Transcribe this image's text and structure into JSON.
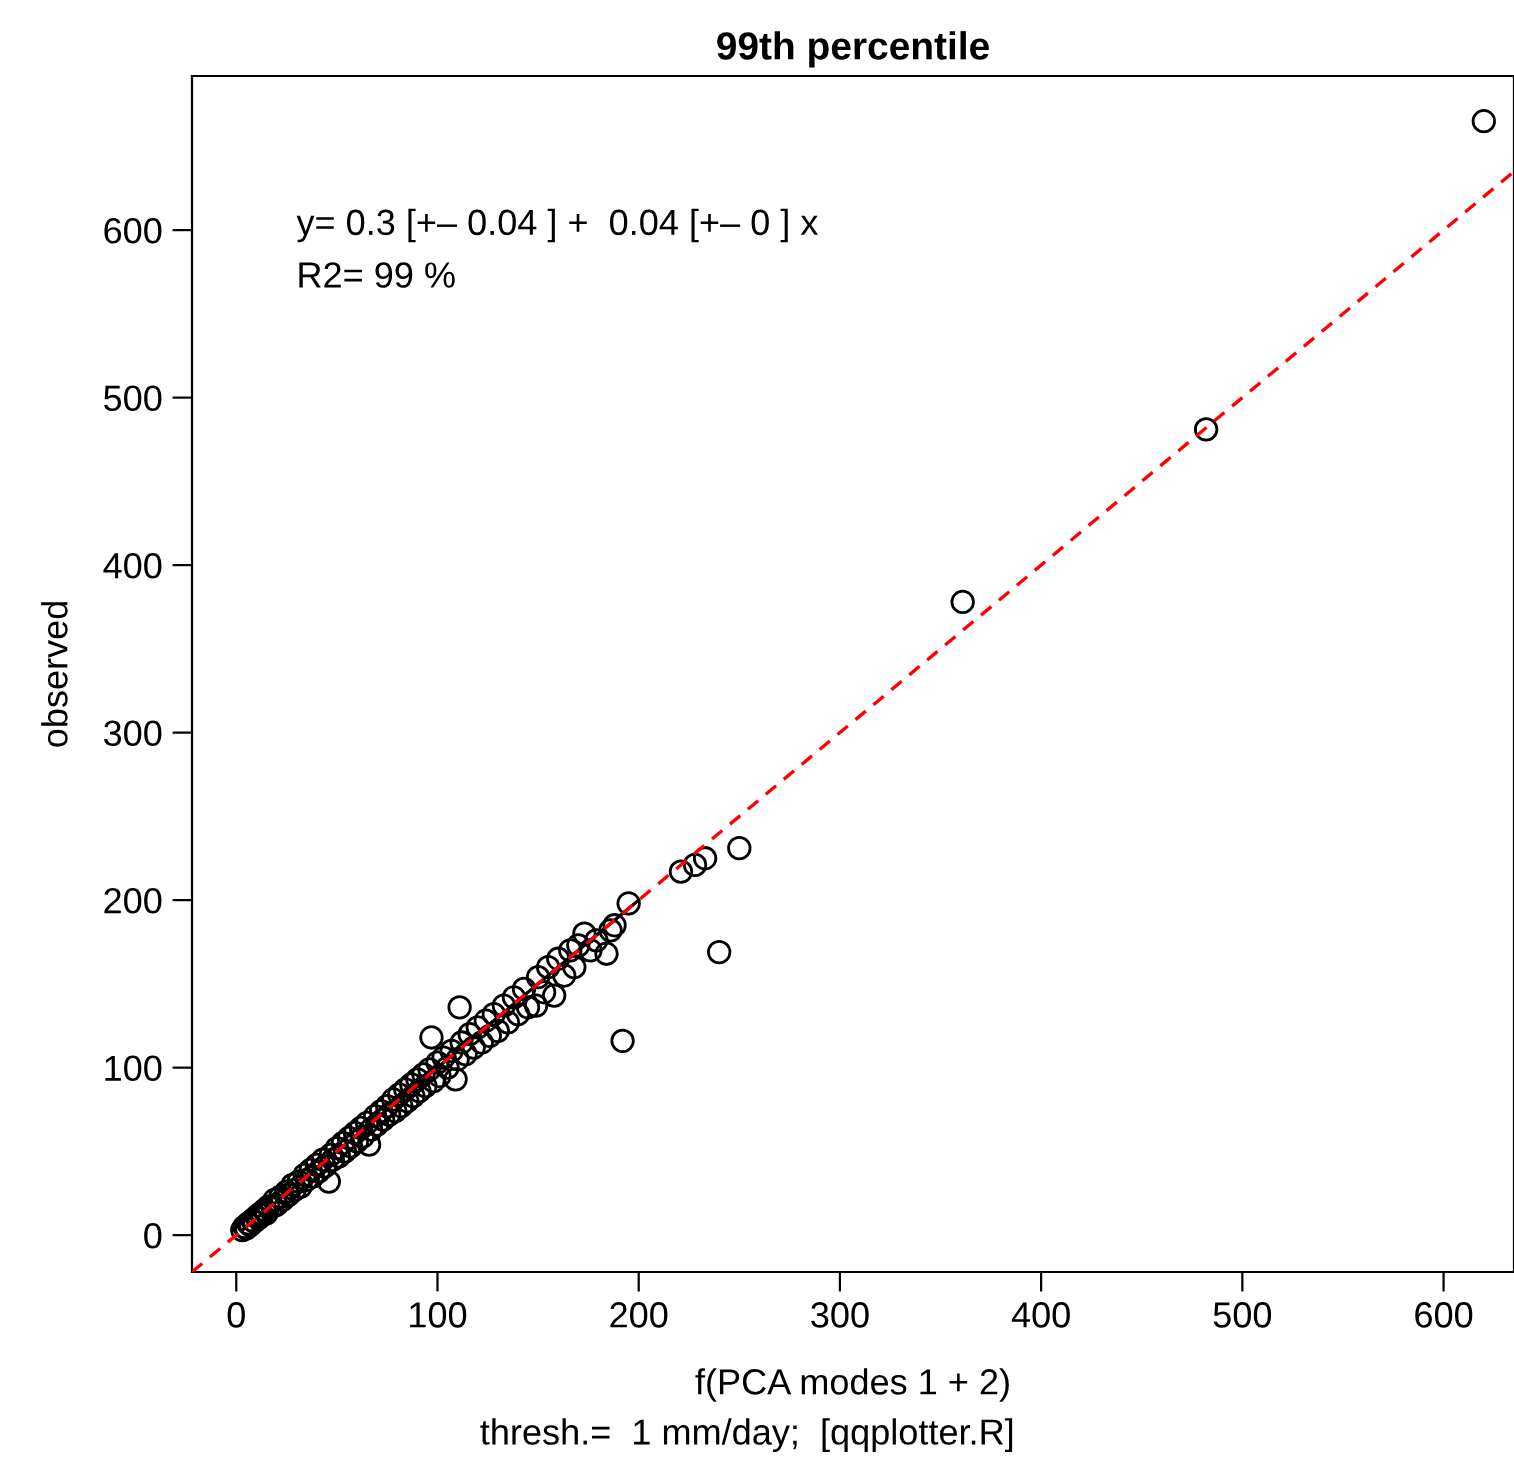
{
  "chart_data": {
    "type": "scatter",
    "title": "99th percentile",
    "xlabel": "f(PCA modes 1 + 2)",
    "ylabel": "observed",
    "annotations": [
      "y= 0.3 [+– 0.04 ] +  0.04 [+– 0 ] x",
      "R2= 99 %",
      "thresh.=  1 mm/day;  [qqplotter.R]"
    ],
    "xlim": [
      -22,
      635
    ],
    "ylim": [
      -22,
      692
    ],
    "xticks": [
      0,
      100,
      200,
      300,
      400,
      500,
      600
    ],
    "yticks": [
      0,
      100,
      200,
      300,
      400,
      500,
      600
    ],
    "grid": false,
    "legend": false,
    "series": [
      {
        "color": "#000000",
        "marker": "circle",
        "x": [
          3,
          4,
          5,
          6,
          7,
          8,
          9,
          10,
          11,
          12,
          13,
          14,
          15,
          16,
          18,
          19,
          20,
          22,
          23,
          25,
          26,
          28,
          29,
          31,
          32,
          34,
          35,
          37,
          38,
          40,
          41,
          43,
          44,
          46,
          47,
          48,
          50,
          51,
          53,
          54,
          56,
          57,
          59,
          60,
          62,
          63,
          65,
          66,
          67,
          69,
          70,
          72,
          73,
          75,
          76,
          78,
          79,
          81,
          82,
          84,
          85,
          87,
          88,
          90,
          91,
          93,
          94,
          96,
          97,
          98,
          100,
          101,
          103,
          105,
          107,
          109,
          110,
          111,
          112,
          114,
          116,
          118,
          120,
          122,
          124,
          126,
          128,
          130,
          133,
          135,
          138,
          140,
          143,
          145,
          149,
          150,
          153,
          155,
          158,
          160,
          163,
          166,
          168,
          170,
          173,
          176,
          179,
          184,
          186,
          188,
          195,
          192,
          221,
          228,
          233,
          240,
          250,
          361,
          482,
          620
        ],
        "values": [
          3,
          5,
          4,
          7,
          6,
          9,
          8,
          11,
          10,
          13,
          12,
          15,
          13,
          17,
          17,
          21,
          18,
          23,
          21,
          26,
          24,
          30,
          27,
          32,
          29,
          36,
          33,
          39,
          35,
          42,
          38,
          45,
          41,
          32,
          48,
          45,
          52,
          47,
          55,
          50,
          58,
          53,
          61,
          56,
          64,
          59,
          67,
          54,
          63,
          71,
          66,
          74,
          69,
          77,
          72,
          81,
          74,
          84,
          77,
          87,
          80,
          90,
          83,
          93,
          86,
          96,
          89,
          99,
          118,
          92,
          103,
          95,
          106,
          100,
          110,
          93,
          105,
          136,
          115,
          108,
          120,
          112,
          124,
          115,
          128,
          119,
          132,
          122,
          137,
          127,
          142,
          132,
          147,
          136,
          137,
          154,
          145,
          160,
          143,
          165,
          155,
          170,
          160,
          173,
          180,
          170,
          176,
          168,
          182,
          185,
          198,
          116,
          217,
          221,
          225,
          169,
          231,
          378,
          481,
          665
        ]
      },
      {
        "type": "line",
        "color": "#000000",
        "line_style": "solid",
        "marker": "none",
        "x": [
          3,
          200
        ],
        "values": [
          3,
          200
        ]
      },
      {
        "type": "line",
        "color": "#ff0000",
        "line_style": "dashed",
        "marker": "none",
        "x": [
          -22,
          635
        ],
        "values": [
          -22,
          635
        ]
      }
    ]
  }
}
